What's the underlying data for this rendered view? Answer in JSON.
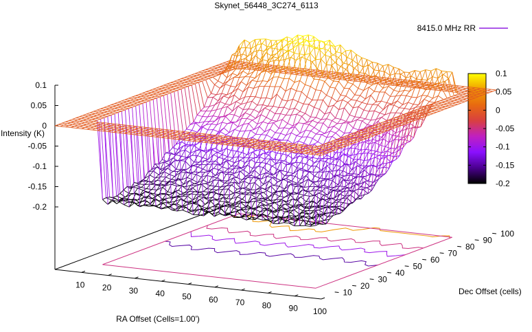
{
  "chart_data": {
    "type": "surface3d",
    "title": "Skynet_56448_3C274_6113",
    "xlabel": "RA Offset (Cells=1.00')",
    "ylabel": "Dec Offset (cells)",
    "zlabel": "Intensity (K)",
    "legend": {
      "label": "8415.0 MHz RR",
      "placement": "top-right"
    },
    "xlim": [
      0,
      100
    ],
    "ylim": [
      0,
      100
    ],
    "zlim": [
      -0.2,
      0.1
    ],
    "x_ticks": [
      "10",
      "20",
      "30",
      "40",
      "50",
      "60",
      "70",
      "80",
      "90",
      "100"
    ],
    "y_ticks": [
      "10",
      "20",
      "30",
      "40",
      "50",
      "60",
      "70",
      "80",
      "90",
      "100"
    ],
    "z_ticks": [
      "0.1",
      "0.05",
      "0",
      "-0.05",
      "-0.1",
      "-0.15",
      "-0.2"
    ],
    "colorbar": {
      "range": [
        -0.2,
        0.1
      ],
      "ticks": [
        "0.1",
        "0.05",
        "0",
        "-0.05",
        "-0.1",
        "-0.15",
        "-0.2"
      ],
      "colors": [
        "#000000",
        "#4b0090",
        "#8a10ff",
        "#c020c0",
        "#d84040",
        "#e86a10",
        "#f0a000",
        "#ffff00"
      ]
    },
    "surface": {
      "baseline": 0,
      "scan_region": {
        "x": [
          10,
          90
        ],
        "y": [
          12,
          90
        ]
      },
      "depression_min": -0.2,
      "edge_ridge_max": 0.08,
      "contour_levels": [
        -0.15,
        -0.1,
        -0.05,
        0.05
      ]
    }
  }
}
